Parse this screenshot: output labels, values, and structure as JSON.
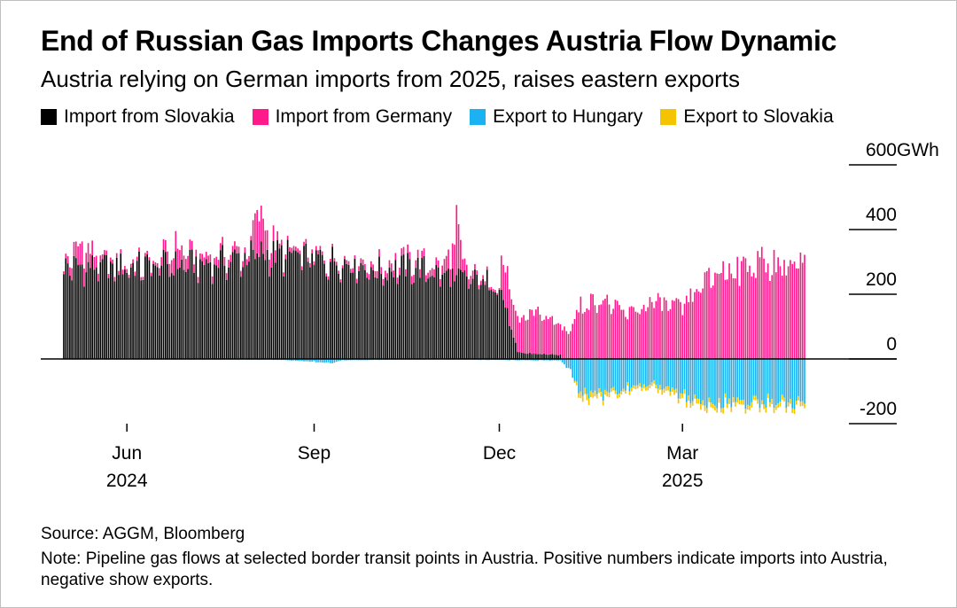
{
  "title": "End of Russian Gas Imports Changes Austria Flow Dynamic",
  "subtitle": "Austria relying on German imports from 2025, raises eastern exports",
  "source": "Source: AGGM, Bloomberg",
  "note": "Note: Pipeline gas flows at selected border transit points in Austria. Positive numbers indicate imports into Austria, negative show exports.",
  "chart_data": {
    "type": "bar",
    "stacked": true,
    "x_start": "2024-05-01",
    "x_end": "2025-04-30",
    "y_unit": "GWh",
    "ylim": [
      -200,
      600
    ],
    "y_ticks": [
      {
        "value": 600,
        "label": "600"
      },
      {
        "value": 400,
        "label": "400"
      },
      {
        "value": 200,
        "label": "200"
      },
      {
        "value": 0,
        "label": "0"
      },
      {
        "value": -200,
        "label": "-200"
      }
    ],
    "x_ticks": [
      {
        "date": "2024-06-01",
        "label": "Jun",
        "year": "2024"
      },
      {
        "date": "2024-09-01",
        "label": "Sep",
        "year": ""
      },
      {
        "date": "2024-12-01",
        "label": "Dec",
        "year": ""
      },
      {
        "date": "2025-03-01",
        "label": "Mar",
        "year": "2025"
      }
    ],
    "legend": [
      {
        "name": "Import from Slovakia",
        "color": "#000000"
      },
      {
        "name": "Import from Germany",
        "color": "#ff1a8c"
      },
      {
        "name": "Export to Hungary",
        "color": "#1ab2f0"
      },
      {
        "name": "Export to Slovakia",
        "color": "#f5c400"
      }
    ],
    "series": [
      {
        "name": "Import from Slovakia",
        "color": "#000000",
        "anchors": [
          [
            "2024-05-01",
            290
          ],
          [
            "2024-05-15",
            290
          ],
          [
            "2024-06-01",
            290
          ],
          [
            "2024-06-20",
            295
          ],
          [
            "2024-07-10",
            300
          ],
          [
            "2024-07-25",
            315
          ],
          [
            "2024-08-05",
            330
          ],
          [
            "2024-08-20",
            325
          ],
          [
            "2024-09-01",
            315
          ],
          [
            "2024-09-20",
            305
          ],
          [
            "2024-10-01",
            275
          ],
          [
            "2024-10-20",
            290
          ],
          [
            "2024-11-01",
            270
          ],
          [
            "2024-11-10",
            255
          ],
          [
            "2024-11-20",
            245
          ],
          [
            "2024-11-25",
            245
          ],
          [
            "2024-12-01",
            235
          ],
          [
            "2024-12-10",
            20
          ],
          [
            "2024-12-31",
            12
          ],
          [
            "2025-01-01",
            0
          ],
          [
            "2025-04-30",
            0
          ]
        ]
      },
      {
        "name": "Import from Germany",
        "color": "#ff1a8c",
        "anchors": [
          [
            "2024-05-01",
            10
          ],
          [
            "2024-05-10",
            70
          ],
          [
            "2024-05-20",
            15
          ],
          [
            "2024-06-15",
            10
          ],
          [
            "2024-06-25",
            60
          ],
          [
            "2024-07-05",
            20
          ],
          [
            "2024-07-20",
            25
          ],
          [
            "2024-08-01",
            15
          ],
          [
            "2024-08-03",
            160
          ],
          [
            "2024-08-08",
            80
          ],
          [
            "2024-08-15",
            15
          ],
          [
            "2024-09-15",
            10
          ],
          [
            "2024-10-01",
            20
          ],
          [
            "2024-10-20",
            25
          ],
          [
            "2024-11-01",
            20
          ],
          [
            "2024-11-08",
            70
          ],
          [
            "2024-11-10",
            220
          ],
          [
            "2024-11-13",
            40
          ],
          [
            "2024-11-20",
            15
          ],
          [
            "2024-12-01",
            5
          ],
          [
            "2024-12-02",
            120
          ],
          [
            "2024-12-10",
            100
          ],
          [
            "2024-12-20",
            130
          ],
          [
            "2024-12-31",
            95
          ],
          [
            "2025-01-05",
            95
          ],
          [
            "2025-01-10",
            170
          ],
          [
            "2025-01-20",
            190
          ],
          [
            "2025-02-01",
            140
          ],
          [
            "2025-02-15",
            180
          ],
          [
            "2025-03-01",
            160
          ],
          [
            "2025-03-10",
            230
          ],
          [
            "2025-03-20",
            280
          ],
          [
            "2025-04-01",
            295
          ],
          [
            "2025-04-10",
            305
          ],
          [
            "2025-04-20",
            300
          ],
          [
            "2025-04-30",
            295
          ]
        ]
      },
      {
        "name": "Export to Hungary",
        "color": "#1ab2f0",
        "anchors": [
          [
            "2024-05-01",
            -2
          ],
          [
            "2024-08-15",
            -3
          ],
          [
            "2024-09-10",
            -12
          ],
          [
            "2024-09-15",
            -4
          ],
          [
            "2024-11-01",
            -2
          ],
          [
            "2024-12-31",
            -5
          ],
          [
            "2025-01-05",
            -40
          ],
          [
            "2025-01-10",
            -110
          ],
          [
            "2025-01-20",
            -115
          ],
          [
            "2025-02-01",
            -95
          ],
          [
            "2025-02-15",
            -80
          ],
          [
            "2025-03-01",
            -115
          ],
          [
            "2025-03-10",
            -130
          ],
          [
            "2025-03-20",
            -140
          ],
          [
            "2025-04-01",
            -135
          ],
          [
            "2025-04-15",
            -135
          ],
          [
            "2025-04-30",
            -140
          ]
        ]
      },
      {
        "name": "Export to Slovakia",
        "color": "#f5c400",
        "anchors": [
          [
            "2024-05-01",
            0
          ],
          [
            "2025-01-06",
            0
          ],
          [
            "2025-01-10",
            -20
          ],
          [
            "2025-02-01",
            -10
          ],
          [
            "2025-03-01",
            -15
          ],
          [
            "2025-03-20",
            -15
          ],
          [
            "2025-04-30",
            -15
          ]
        ]
      }
    ]
  }
}
